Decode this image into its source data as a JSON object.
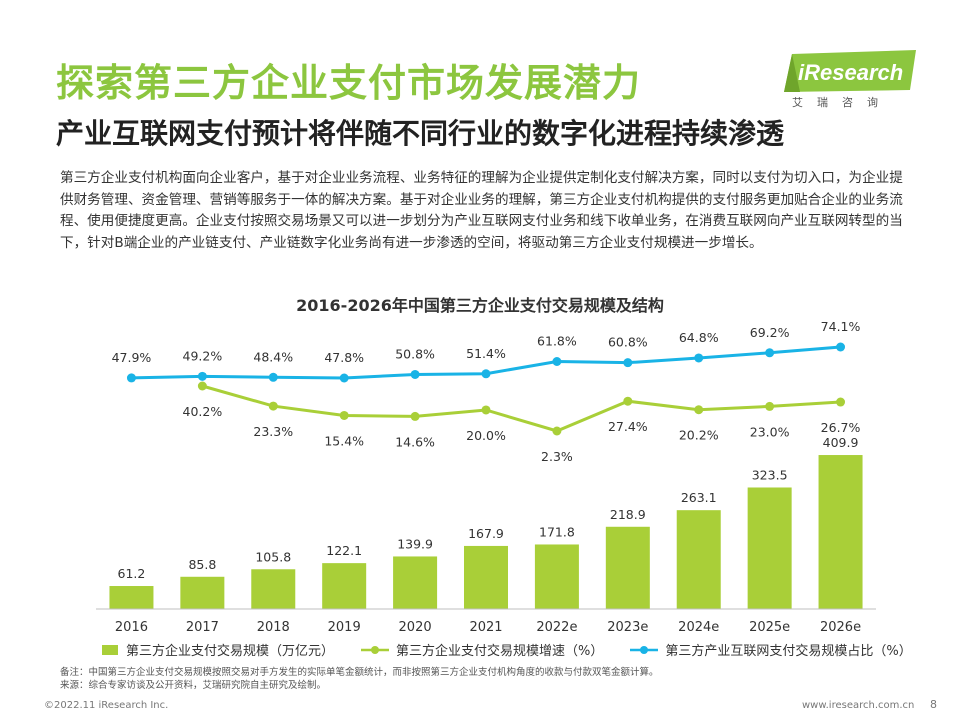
{
  "header": {
    "title": "探索第三方企业支付市场发展潜力",
    "subtitle": "产业互联网支付预计将伴随不同行业的数字化进程持续渗透"
  },
  "logo": {
    "text": "iResearch",
    "cn": "艾瑞咨询"
  },
  "intro": "第三方企业支付机构面向企业客户，基于对企业业务流程、业务特征的理解为企业提供定制化支付解决方案，同时以支付为切入口，为企业提供财务管理、资金管理、营销等服务于一体的解决方案。基于对企业业务的理解，第三方企业支付机构提供的支付服务更加贴合企业的业务流程、使用便捷度更高。企业支付按照交易场景又可以进一步划分为产业互联网支付业务和线下收单业务，在消费互联网向产业互联网转型的当下，针对B端企业的产业链支付、产业链数字化业务尚有进一步渗透的空间，将驱动第三方企业支付规模进一步增长。",
  "chart_data": {
    "type": "bar+line",
    "title": "2016-2026年中国第三方企业支付交易规模及结构",
    "categories": [
      "2016",
      "2017",
      "2018",
      "2019",
      "2020",
      "2021",
      "2022e",
      "2023e",
      "2024e",
      "2025e",
      "2026e"
    ],
    "series": [
      {
        "name": "第三方企业支付交易规模（万亿元）",
        "type": "bar",
        "values": [
          61.2,
          85.8,
          105.8,
          122.1,
          139.9,
          167.9,
          171.8,
          218.9,
          263.1,
          323.5,
          409.9
        ],
        "labels": [
          "61.2",
          "85.8",
          "105.8",
          "122.1",
          "139.9",
          "167.9",
          "171.8",
          "218.9",
          "263.1",
          "323.5",
          "409.9"
        ]
      },
      {
        "name": "第三方企业支付交易规模增速（%）",
        "type": "line",
        "values": [
          null,
          40.2,
          23.3,
          15.4,
          14.6,
          20.0,
          2.3,
          27.4,
          20.2,
          23.0,
          26.7
        ],
        "labels": [
          "",
          "40.2%",
          "23.3%",
          "15.4%",
          "14.6%",
          "20.0%",
          "2.3%",
          "27.4%",
          "20.2%",
          "23.0%",
          "26.7%"
        ]
      },
      {
        "name": "第三方产业互联网支付交易规模占比（%）",
        "type": "line",
        "values": [
          47.9,
          49.2,
          48.4,
          47.8,
          50.8,
          51.4,
          61.8,
          60.8,
          64.8,
          69.2,
          74.1
        ],
        "labels": [
          "47.9%",
          "49.2%",
          "48.4%",
          "47.8%",
          "50.8%",
          "51.4%",
          "61.8%",
          "60.8%",
          "64.8%",
          "69.2%",
          "74.1%"
        ]
      }
    ],
    "colors": {
      "bar": "#a9cf38",
      "growth": "#a9cf38",
      "share": "#19b3e6",
      "axis": "#bfbfbf"
    }
  },
  "note": {
    "line1": "备注：中国第三方企业支付交易规模按照交易对手方发生的实际单笔金额统计，而非按照第三方企业支付机构角度的收款与付款双笔金额计算。",
    "line2": "来源：综合专家访谈及公开资料，艾瑞研究院自主研究及绘制。"
  },
  "footer": {
    "copyright": "©2022.11 iResearch Inc.",
    "website": "www.iresearch.com.cn",
    "page": "8"
  }
}
